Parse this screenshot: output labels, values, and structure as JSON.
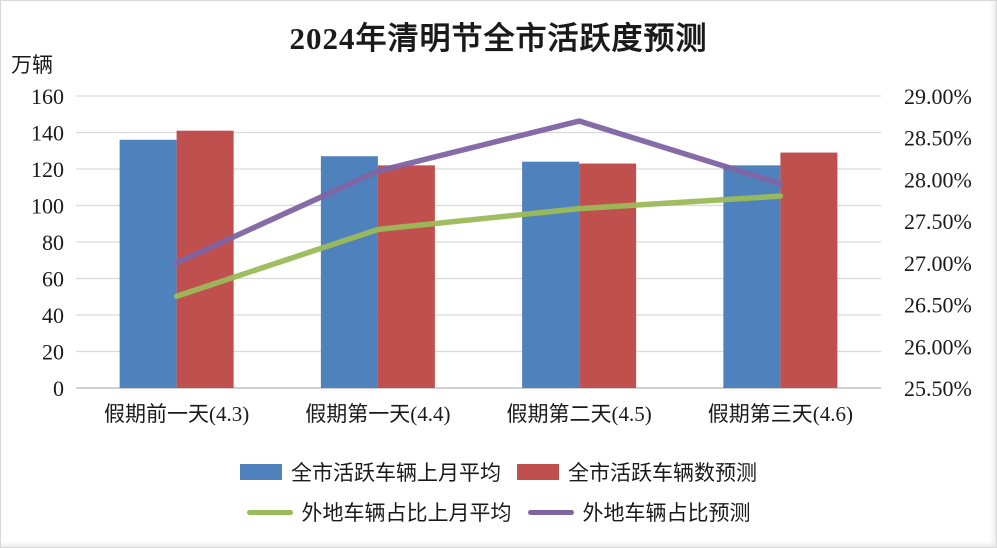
{
  "title": "2024年清明节全市活跃度预测",
  "left_axis": {
    "unit": "万辆",
    "ticks": [
      "160",
      "140",
      "120",
      "100",
      "80",
      "60",
      "40",
      "20",
      "0"
    ],
    "min": 0,
    "max": 160
  },
  "right_axis": {
    "ticks": [
      "29.00%",
      "28.50%",
      "28.00%",
      "27.50%",
      "27.00%",
      "26.50%",
      "26.00%",
      "25.50%"
    ],
    "min": 25.5,
    "max": 29.0
  },
  "chart_data": {
    "type": "combo",
    "title": "2024年清明节全市活跃度预测",
    "categories": [
      "假期前一天(4.3)",
      "假期第一天(4.4)",
      "假期第二天(4.5)",
      "假期第三天(4.6)"
    ],
    "series": [
      {
        "key": "bars-last-month-avg",
        "name": "全市活跃车辆上月平均",
        "type": "bar",
        "axis": "left",
        "color": "#4F81BD",
        "values": [
          136,
          127,
          124,
          122
        ]
      },
      {
        "key": "bars-forecast",
        "name": "全市活跃车辆数预测",
        "type": "bar",
        "axis": "left",
        "color": "#C0504D",
        "values": [
          141,
          122,
          123,
          129
        ]
      },
      {
        "key": "ratio-last-month-avg",
        "name": "外地车辆占比上月平均",
        "type": "line",
        "axis": "right",
        "color": "#9BBB59",
        "values": [
          26.6,
          27.4,
          27.65,
          27.8
        ]
      },
      {
        "key": "ratio-forecast",
        "name": "外地车辆占比预测",
        "type": "line",
        "axis": "right",
        "color": "#8064A2",
        "values": [
          27.0,
          28.1,
          28.7,
          27.95
        ]
      }
    ],
    "left_ylabel": "万辆",
    "left_ylim": [
      0,
      160
    ],
    "right_ylim": [
      25.5,
      29.0
    ],
    "grid": true,
    "legend_position": "bottom",
    "grid_color": "#D9D9D9",
    "baseline_color": "#C0C0C0"
  }
}
